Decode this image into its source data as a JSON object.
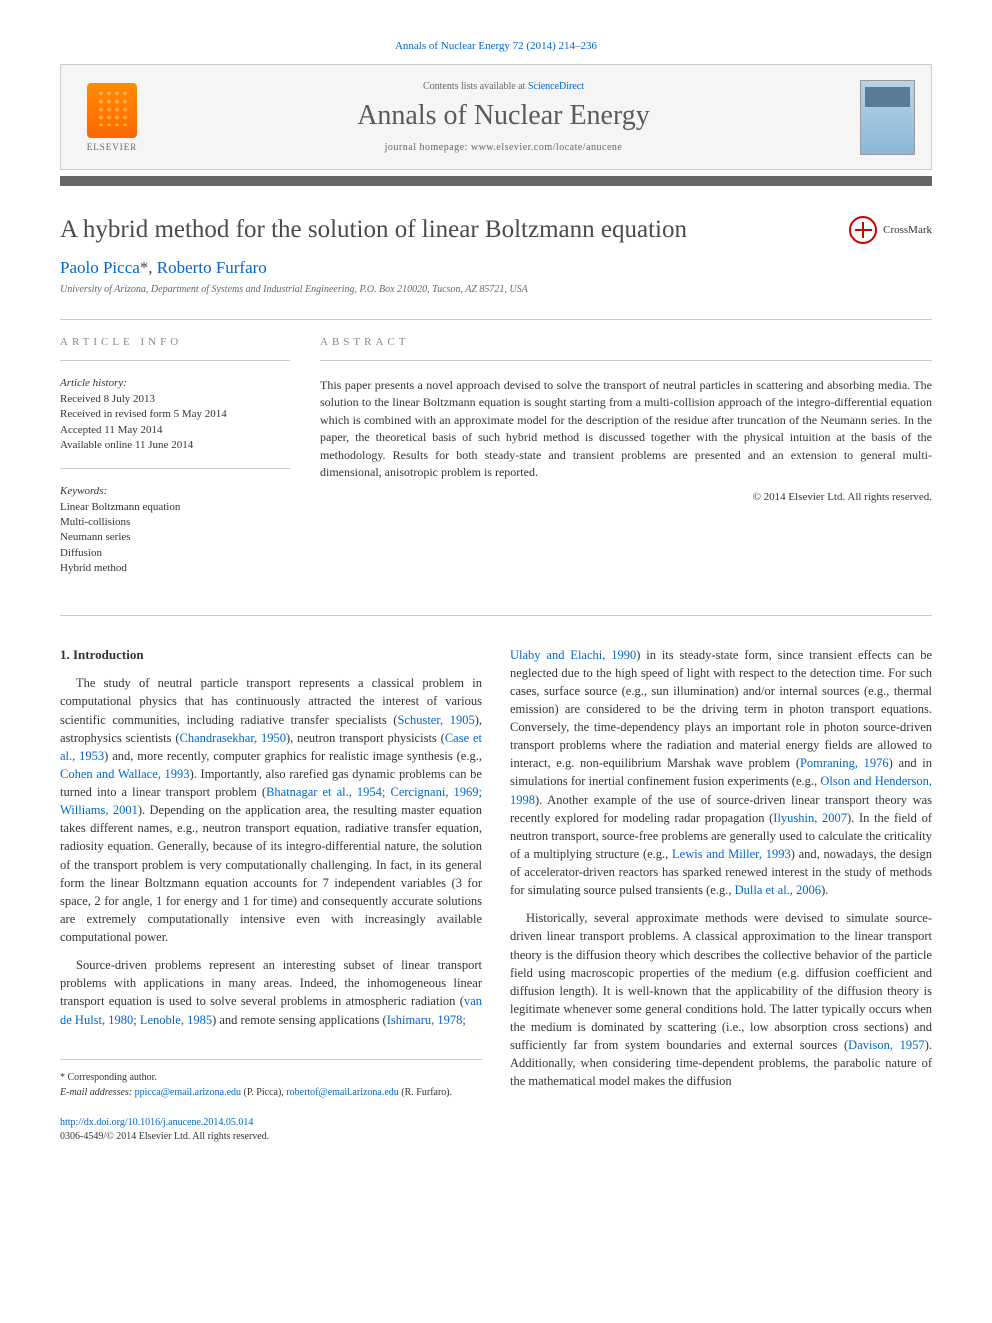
{
  "citation": "Annals of Nuclear Energy 72 (2014) 214–236",
  "header": {
    "contents_prefix": "Contents lists available at ",
    "sciencedirect": "ScienceDirect",
    "journal": "Annals of Nuclear Energy",
    "homepage_prefix": "journal homepage: ",
    "homepage": "www.elsevier.com/locate/anucene",
    "publisher": "ELSEVIER"
  },
  "title": "A hybrid method for the solution of linear Boltzmann equation",
  "crossmark": "CrossMark",
  "authors": {
    "a1": "Paolo Picca",
    "sep": ", ",
    "a2": "Roberto Furfaro",
    "corr_marker": "*"
  },
  "affiliation": "University of Arizona, Department of Systems and Industrial Engineering, P.O. Box 210020, Tucson, AZ 85721, USA",
  "article_info": {
    "label": "ARTICLE INFO",
    "history_label": "Article history:",
    "h1": "Received 8 July 2013",
    "h2": "Received in revised form 5 May 2014",
    "h3": "Accepted 11 May 2014",
    "h4": "Available online 11 June 2014",
    "keywords_label": "Keywords:",
    "k1": "Linear Boltzmann equation",
    "k2": "Multi-collisions",
    "k3": "Neumann series",
    "k4": "Diffusion",
    "k5": "Hybrid method"
  },
  "abstract": {
    "label": "ABSTRACT",
    "text": "This paper presents a novel approach devised to solve the transport of neutral particles in scattering and absorbing media. The solution to the linear Boltzmann equation is sought starting from a multi-collision approach of the integro-differential equation which is combined with an approximate model for the description of the residue after truncation of the Neumann series. In the paper, the theoretical basis of such hybrid method is discussed together with the physical intuition at the basis of the methodology. Results for both steady-state and transient problems are presented and an extension to general multi-dimensional, anisotropic problem is reported.",
    "copyright": "© 2014 Elsevier Ltd. All rights reserved."
  },
  "body": {
    "heading1": "1. Introduction",
    "p1a": "The study of neutral particle transport represents a classical problem in computational physics that has continuously attracted the interest of various scientific communities, including radiative transfer specialists (",
    "r1": "Schuster, 1905",
    "p1b": "), astrophysics scientists (",
    "r2": "Chandrasekhar, 1950",
    "p1c": "), neutron transport physicists (",
    "r3": "Case et al., 1953",
    "p1d": ") and, more recently, computer graphics for realistic image synthesis (e.g., ",
    "r4": "Cohen and Wallace, 1993",
    "p1e": "). Importantly, also rarefied gas dynamic problems can be turned into a linear transport problem (",
    "r5": "Bhatnagar et al., 1954; Cercignani, 1969; Williams, 2001",
    "p1f": "). Depending on the application area, the resulting master equation takes different names, e.g., neutron transport equation, radiative transfer equation, radiosity equation. Generally, because of its integro-differential nature, the solution of the transport problem is very computationally challenging. In fact, in its general form the linear Boltzmann equation accounts for 7 independent variables (3 for space, 2 for angle, 1 for energy and 1 for time) and consequently accurate solutions are extremely computationally intensive even with increasingly available computational power.",
    "p2a": "Source-driven problems represent an interesting subset of linear transport problems with applications in many areas. Indeed, the inhomogeneous linear transport equation is used to solve several problems in atmospheric radiation (",
    "r6": "van de Hulst, 1980; Lenoble, 1985",
    "p2b": ") and remote sensing applications (",
    "r7": "Ishimaru, 1978;",
    "r8": "Ulaby and Elachi, 1990",
    "p3a": ") in its steady-state form, since transient effects can be neglected due to the high speed of light with respect to the detection time. For such cases, surface source (e.g., sun illumination) and/or internal sources (e.g., thermal emission) are considered to be the driving term in photon transport equations. Conversely, the time-dependency plays an important role in photon source-driven transport problems where the radiation and material energy fields are allowed to interact, e.g. non-equilibrium Marshak wave problem (",
    "r9": "Pomraning, 1976",
    "p3b": ") and in simulations for inertial confinement fusion experiments (e.g., ",
    "r10": "Olson and Henderson, 1998",
    "p3c": "). Another example of the use of source-driven linear transport theory was recently explored for modeling radar propagation (",
    "r11": "Ilyushin, 2007",
    "p3d": "). In the field of neutron transport, source-free problems are generally used to calculate the criticality of a multiplying structure (e.g., ",
    "r12": "Lewis and Miller, 1993",
    "p3e": ") and, nowadays, the design of accelerator-driven reactors has sparked renewed interest in the study of methods for simulating source pulsed transients (e.g., ",
    "r13": "Dulla et al., 2006",
    "p3f": ").",
    "p4a": "Historically, several approximate methods were devised to simulate source-driven linear transport problems. A classical approximation to the linear transport theory is the diffusion theory which describes the collective behavior of the particle field using macroscopic properties of the medium (e.g. diffusion coefficient and diffusion length). It is well-known that the applicability of the diffusion theory is legitimate whenever some general conditions hold. The latter typically occurs when the medium is dominated by scattering (i.e., low absorption cross sections) and sufficiently far from system boundaries and external sources (",
    "r14": "Davison, 1957",
    "p4b": "). Additionally, when considering time-dependent problems, the parabolic nature of the mathematical model makes the diffusion"
  },
  "footer": {
    "corr_label": "* Corresponding author.",
    "email_label": "E-mail addresses: ",
    "e1": "ppicca@email.arizona.edu",
    "e1_name": " (P. Picca), ",
    "e2": "robertof@email.arizona.edu",
    "e2_name": " (R. Furfaro).",
    "doi": "http://dx.doi.org/10.1016/j.anucene.2014.05.014",
    "issn": "0306-4549/© 2014 Elsevier Ltd. All rights reserved."
  },
  "colors": {
    "link": "#0066cc",
    "text": "#333333",
    "heading": "#4a4a4a",
    "divider": "#666666",
    "border": "#cccccc"
  }
}
